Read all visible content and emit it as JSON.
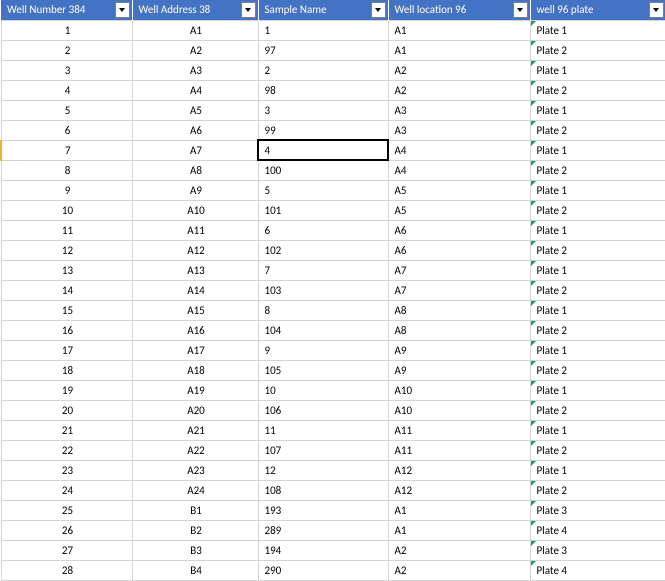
{
  "header_bg": "#4472c4",
  "header_fg": "#ffffff",
  "grid_color": "#d4d4d4",
  "triangle_color": "#00b050",
  "row_indicator_color": "#e8b828",
  "selected_row_index": 6,
  "selected_col_index": 2,
  "columns": [
    {
      "label": "Well Number 384",
      "align": "center"
    },
    {
      "label": "Well Address 38",
      "align": "center"
    },
    {
      "label": "Sample Name",
      "align": "left"
    },
    {
      "label": "Well location 96",
      "align": "left"
    },
    {
      "label": "well 96 plate",
      "align": "left",
      "triangle": true
    }
  ],
  "rows": [
    [
      "1",
      "A1",
      "1",
      "A1",
      "Plate 1"
    ],
    [
      "2",
      "A2",
      "97",
      "A1",
      "Plate 2"
    ],
    [
      "3",
      "A3",
      "2",
      "A2",
      "Plate 1"
    ],
    [
      "4",
      "A4",
      "98",
      "A2",
      "Plate 2"
    ],
    [
      "5",
      "A5",
      "3",
      "A3",
      "Plate 1"
    ],
    [
      "6",
      "A6",
      "99",
      "A3",
      "Plate 2"
    ],
    [
      "7",
      "A7",
      "4",
      "A4",
      "Plate 1"
    ],
    [
      "8",
      "A8",
      "100",
      "A4",
      "Plate 2"
    ],
    [
      "9",
      "A9",
      "5",
      "A5",
      "Plate 1"
    ],
    [
      "10",
      "A10",
      "101",
      "A5",
      "Plate 2"
    ],
    [
      "11",
      "A11",
      "6",
      "A6",
      "Plate 1"
    ],
    [
      "12",
      "A12",
      "102",
      "A6",
      "Plate 2"
    ],
    [
      "13",
      "A13",
      "7",
      "A7",
      "Plate 1"
    ],
    [
      "14",
      "A14",
      "103",
      "A7",
      "Plate 2"
    ],
    [
      "15",
      "A15",
      "8",
      "A8",
      "Plate 1"
    ],
    [
      "16",
      "A16",
      "104",
      "A8",
      "Plate 2"
    ],
    [
      "17",
      "A17",
      "9",
      "A9",
      "Plate 1"
    ],
    [
      "18",
      "A18",
      "105",
      "A9",
      "Plate 2"
    ],
    [
      "19",
      "A19",
      "10",
      "A10",
      "Plate 1"
    ],
    [
      "20",
      "A20",
      "106",
      "A10",
      "Plate 2"
    ],
    [
      "21",
      "A21",
      "11",
      "A11",
      "Plate 1"
    ],
    [
      "22",
      "A22",
      "107",
      "A11",
      "Plate 2"
    ],
    [
      "23",
      "A23",
      "12",
      "A12",
      "Plate 1"
    ],
    [
      "24",
      "A24",
      "108",
      "A12",
      "Plate 2"
    ],
    [
      "25",
      "B1",
      "193",
      "A1",
      "Plate 3"
    ],
    [
      "26",
      "B2",
      "289",
      "A1",
      "Plate 4"
    ],
    [
      "27",
      "B3",
      "194",
      "A2",
      "Plate 3"
    ],
    [
      "28",
      "B4",
      "290",
      "A2",
      "Plate 4"
    ]
  ]
}
